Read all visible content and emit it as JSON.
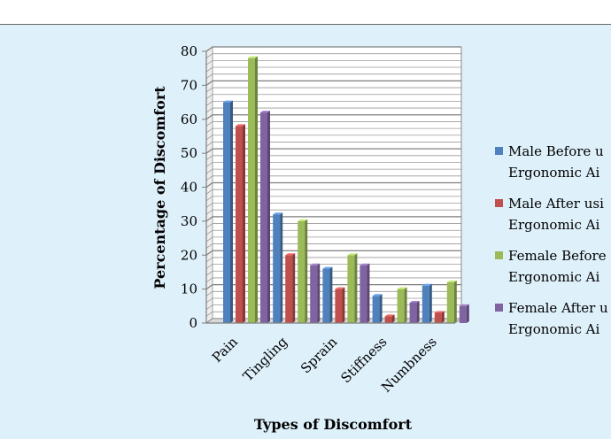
{
  "chart_data": {
    "type": "bar",
    "title": "",
    "xlabel": "Types of Discomfort",
    "ylabel": "Percentage of Discomfort",
    "ylim": [
      0,
      80
    ],
    "yticks": [
      0,
      10,
      20,
      30,
      40,
      50,
      60,
      70,
      80
    ],
    "grid": true,
    "legend_position": "right",
    "categories": [
      "Pain",
      "Tingling",
      "Sprain",
      "Stiffness",
      "Numbness"
    ],
    "series": [
      {
        "name": "Male Before using Ergonomic Aid",
        "legend_lines": [
          "Male Before u",
          "Ergonomic Ai"
        ],
        "color": "#4f81bd",
        "values": [
          65,
          32,
          16,
          8,
          11
        ]
      },
      {
        "name": "Male After using Ergonomic Aid",
        "legend_lines": [
          "Male After usi",
          "Ergonomic Ai"
        ],
        "color": "#c0504d",
        "values": [
          58,
          20,
          10,
          2,
          3
        ]
      },
      {
        "name": "Female Before using Ergonomic Aid",
        "legend_lines": [
          "Female Before",
          "Ergonomic Ai"
        ],
        "color": "#9bbb59",
        "values": [
          78,
          30,
          20,
          10,
          12
        ]
      },
      {
        "name": "Female After using Ergonomic Aid",
        "legend_lines": [
          "Female After u",
          "Ergonomic Ai"
        ],
        "color": "#8064a2",
        "values": [
          62,
          17,
          17,
          6,
          5
        ]
      }
    ]
  }
}
